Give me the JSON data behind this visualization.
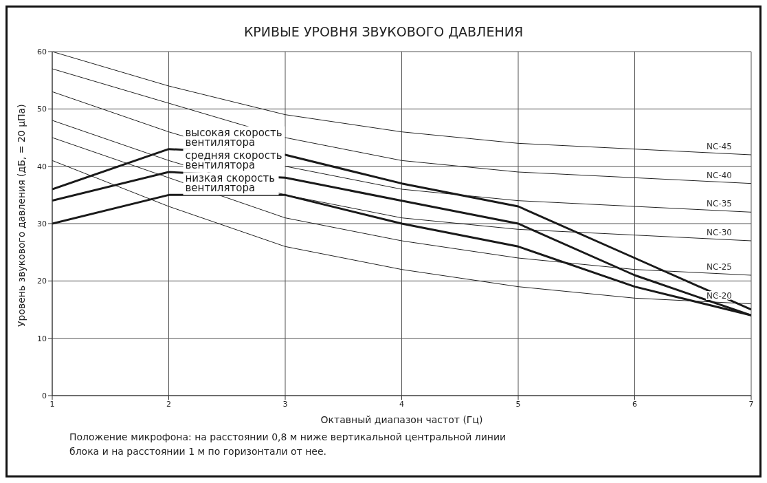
{
  "chart_data": {
    "type": "line",
    "title": "КРИВЫЕ УРОВНЯ ЗВУКОВОГО ДАВЛЕНИЯ",
    "xlabel": "Октавный диапазон частот (Гц)",
    "ylabel": "Уровень звукового давления (дБ, = 20 µПа)",
    "x": [
      1,
      2,
      3,
      4,
      5,
      6,
      7
    ],
    "xlim": [
      1,
      7
    ],
    "xticks": [
      1,
      2,
      3,
      4,
      5,
      6,
      7
    ],
    "ylim": [
      0,
      60
    ],
    "yticks": [
      0,
      10,
      20,
      30,
      40,
      50,
      60
    ],
    "grid": true,
    "legend": false,
    "marker": "none",
    "line_style": "solid",
    "series": [
      {
        "name": "NC-45",
        "color": "#222222",
        "values": [
          60,
          54,
          49,
          46,
          44,
          43,
          42
        ]
      },
      {
        "name": "NC-40",
        "color": "#222222",
        "values": [
          57,
          51,
          45,
          41,
          39,
          38,
          37
        ]
      },
      {
        "name": "NC-35",
        "color": "#222222",
        "values": [
          53,
          46,
          40,
          36,
          34,
          33,
          32
        ]
      },
      {
        "name": "NC-30",
        "color": "#222222",
        "values": [
          48,
          41,
          35,
          31,
          29,
          28,
          27
        ]
      },
      {
        "name": "NC-25",
        "color": "#222222",
        "values": [
          45,
          38,
          31,
          27,
          24,
          22,
          21
        ]
      },
      {
        "name": "NC-20",
        "color": "#222222",
        "values": [
          41,
          33,
          26,
          22,
          19,
          17,
          16
        ]
      },
      {
        "name": "высокая скорость вентилятора",
        "color": "#1a1a1a",
        "values": [
          36,
          43,
          42,
          37,
          33,
          24,
          15
        ]
      },
      {
        "name": "средняя скорость вентилятора",
        "color": "#1a1a1a",
        "values": [
          34,
          39,
          38,
          34,
          30,
          21,
          14
        ]
      },
      {
        "name": "низкая скорость вентилятора",
        "color": "#1a1a1a",
        "values": [
          30,
          35,
          35,
          30,
          26,
          19,
          14
        ]
      }
    ],
    "annotations": [
      "Положение микрофона: на расстоянии 0,8 м ниже вертикальной центральной линии блока и на расстоянии 1 м по горизонтали от нее."
    ]
  }
}
